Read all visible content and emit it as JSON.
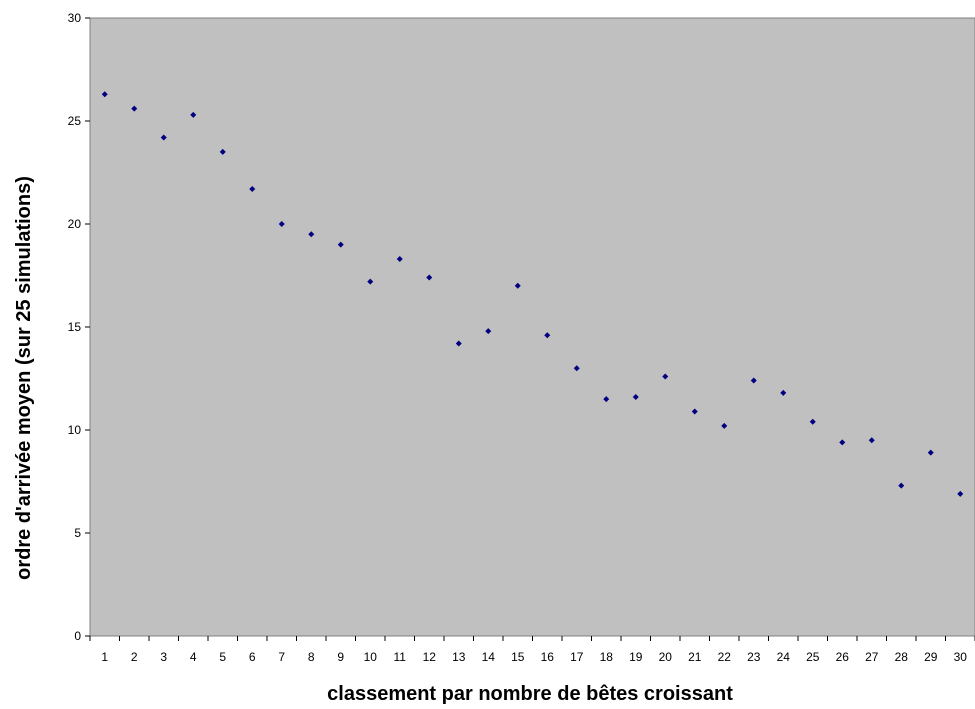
{
  "chart_data": {
    "type": "scatter",
    "title": "",
    "xlabel": "classement par nombre de bêtes croissant",
    "ylabel": "ordre d'arrivée moyen (sur 25 simulations)",
    "xlim": [
      0.5,
      30.5
    ],
    "ylim": [
      0,
      30
    ],
    "yticks": [
      "0",
      "5",
      "10",
      "15",
      "20",
      "25",
      "30"
    ],
    "xticks": [
      "1",
      "2",
      "3",
      "4",
      "5",
      "6",
      "7",
      "8",
      "9",
      "10",
      "11",
      "12",
      "13",
      "14",
      "15",
      "16",
      "17",
      "18",
      "19",
      "20",
      "21",
      "22",
      "23",
      "24",
      "25",
      "26",
      "27",
      "28",
      "29",
      "30"
    ],
    "grid": false,
    "legend": "none",
    "plot_background": "#c0c0c0",
    "marker_color": "#000080",
    "x": [
      1,
      2,
      3,
      4,
      5,
      6,
      7,
      8,
      9,
      10,
      11,
      12,
      13,
      14,
      15,
      16,
      17,
      18,
      19,
      20,
      21,
      22,
      23,
      24,
      25,
      26,
      27,
      28,
      29,
      30
    ],
    "y": [
      26.3,
      25.6,
      24.2,
      25.3,
      23.5,
      21.7,
      20.0,
      19.5,
      19.0,
      17.2,
      18.3,
      17.4,
      14.2,
      14.8,
      17.0,
      14.6,
      13.0,
      11.5,
      11.6,
      12.6,
      10.9,
      10.2,
      12.4,
      11.8,
      10.4,
      9.4,
      9.5,
      7.3,
      8.9,
      6.9
    ]
  }
}
